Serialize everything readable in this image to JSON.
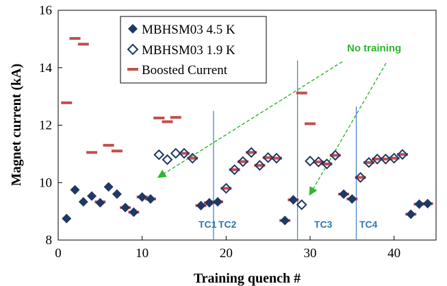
{
  "chart_data": {
    "type": "scatter",
    "xlabel": "Training quench #",
    "ylabel": "Magnet current (kA)",
    "xlim": [
      0,
      45
    ],
    "ylim": [
      8,
      16
    ],
    "xticks": [
      0,
      10,
      20,
      30,
      40
    ],
    "yticks": [
      8,
      10,
      12,
      14,
      16
    ],
    "grid": false,
    "legend_position": "top-left",
    "series": [
      {
        "name": "MBHSM03 4.5 K",
        "marker": "filled-diamond",
        "color": "#1f3864",
        "points": [
          [
            1,
            8.75
          ],
          [
            2,
            9.75
          ],
          [
            3,
            9.33
          ],
          [
            4,
            9.53
          ],
          [
            5,
            9.3
          ],
          [
            6,
            9.85
          ],
          [
            7,
            9.6
          ],
          [
            8,
            9.13
          ],
          [
            9,
            8.97
          ],
          [
            10,
            9.5
          ],
          [
            11,
            9.43
          ],
          [
            17,
            9.2
          ],
          [
            18,
            9.3
          ],
          [
            19,
            9.33
          ],
          [
            27,
            8.68
          ],
          [
            28,
            9.4
          ],
          [
            34,
            9.6
          ],
          [
            35,
            9.43
          ],
          [
            42,
            8.9
          ],
          [
            43,
            9.25
          ],
          [
            44,
            9.27
          ]
        ]
      },
      {
        "name": "MBHSM03 1.9 K",
        "marker": "open-diamond",
        "color": "#1f3864",
        "points": [
          [
            12,
            10.97
          ],
          [
            13,
            10.8
          ],
          [
            14,
            11.02
          ],
          [
            15,
            11.02
          ],
          [
            16,
            10.85
          ],
          [
            20,
            9.8
          ],
          [
            21,
            10.45
          ],
          [
            22,
            10.73
          ],
          [
            23,
            11.05
          ],
          [
            24,
            10.6
          ],
          [
            25,
            10.87
          ],
          [
            26,
            10.85
          ],
          [
            29,
            9.23
          ],
          [
            30,
            10.75
          ],
          [
            31,
            10.72
          ],
          [
            32,
            10.65
          ],
          [
            33,
            10.95
          ],
          [
            36,
            10.18
          ],
          [
            37,
            10.7
          ],
          [
            38,
            10.82
          ],
          [
            39,
            10.82
          ],
          [
            40,
            10.85
          ],
          [
            41,
            10.98
          ]
        ]
      },
      {
        "name": "Boosted Current",
        "marker": "dash",
        "color": "#c0504d",
        "points": [
          [
            1,
            12.78
          ],
          [
            2,
            15.02
          ],
          [
            3,
            14.82
          ],
          [
            4,
            11.05
          ],
          [
            5,
            9.33
          ],
          [
            6,
            11.3
          ],
          [
            7,
            11.1
          ],
          [
            8,
            9.13
          ],
          [
            9,
            8.97
          ],
          [
            10,
            9.5
          ],
          [
            11,
            9.43
          ],
          [
            12,
            12.25
          ],
          [
            13,
            12.12
          ],
          [
            14,
            12.27
          ],
          [
            15,
            11.02
          ],
          [
            16,
            10.85
          ],
          [
            17,
            9.2
          ],
          [
            18,
            9.3
          ],
          [
            19,
            9.33
          ],
          [
            20,
            9.8
          ],
          [
            21,
            10.45
          ],
          [
            22,
            10.73
          ],
          [
            23,
            11.05
          ],
          [
            24,
            10.6
          ],
          [
            25,
            10.87
          ],
          [
            26,
            10.85
          ],
          [
            27,
            8.68
          ],
          [
            28,
            9.4
          ],
          [
            29,
            13.12
          ],
          [
            30,
            12.05
          ],
          [
            31,
            10.72
          ],
          [
            32,
            10.65
          ],
          [
            33,
            10.95
          ],
          [
            34,
            9.6
          ],
          [
            35,
            9.43
          ],
          [
            36,
            10.18
          ],
          [
            37,
            10.7
          ],
          [
            38,
            10.82
          ],
          [
            39,
            10.82
          ],
          [
            40,
            10.85
          ],
          [
            41,
            10.98
          ],
          [
            42,
            8.9
          ],
          [
            43,
            9.25
          ],
          [
            44,
            9.27
          ]
        ]
      }
    ],
    "vertical_lines": [
      {
        "label": "TC1",
        "x": 18.5,
        "y_top": 12.5
      },
      {
        "label": "TC2",
        "x": 18.5,
        "y_top": 12.5
      },
      {
        "label": "TC3",
        "x": 28.5,
        "y_top": 14.25
      },
      {
        "label": "TC4",
        "x": 35.5,
        "y_top": 12.65
      }
    ],
    "annotations": [
      {
        "text": "No training",
        "arrow_targets": [
          [
            12,
            10.2
          ],
          [
            30,
            9.6
          ]
        ]
      }
    ]
  }
}
